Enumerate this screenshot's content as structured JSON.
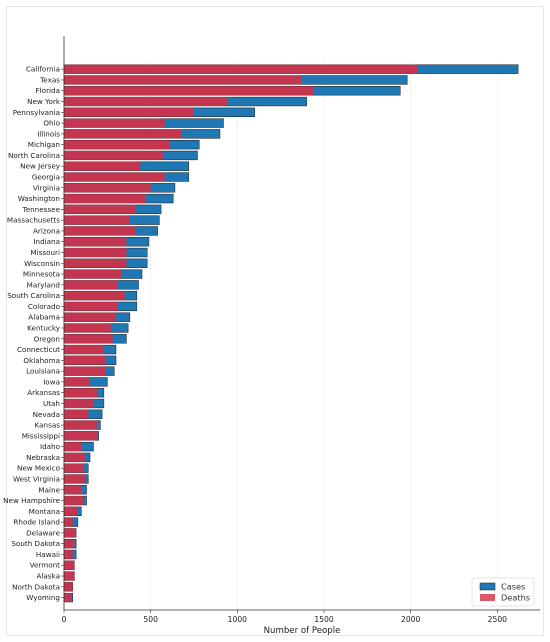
{
  "chart_data": {
    "type": "bar",
    "orientation": "horizontal",
    "stacked": false,
    "xlabel": "Number of People",
    "ylabel": "",
    "xlim": [
      0,
      2700
    ],
    "xticks": [
      0,
      500,
      1000,
      1500,
      2000,
      2500
    ],
    "grid": "vertical-dashed",
    "legend_position": "bottom-right",
    "colors": {
      "cases": "#1f77b4",
      "deaths": "#d62d45"
    },
    "categories": [
      "California",
      "Texas",
      "Florida",
      "New York",
      "Pennsylvania",
      "Ohio",
      "Illinois",
      "Michigan",
      "North Carolina",
      "New Jersey",
      "Georgia",
      "Virginia",
      "Washington",
      "Tennessee",
      "Massachusetts",
      "Arizona",
      "Indiana",
      "Missouri",
      "Wisconsin",
      "Minnesota",
      "Maryland",
      "South Carolina",
      "Colorado",
      "Alabama",
      "Kentucky",
      "Oregon",
      "Connecticut",
      "Oklahoma",
      "Louisiana",
      "Iowa",
      "Arkansas",
      "Utah",
      "Nevada",
      "Kansas",
      "Mississippi",
      "Idaho",
      "Nebraska",
      "New Mexico",
      "West Virginia",
      "Maine",
      "New Hampshire",
      "Montana",
      "Rhode Island",
      "Delaware",
      "South Dakota",
      "Hawaii",
      "Vermont",
      "Alaska",
      "North Dakota",
      "Wyoming"
    ],
    "series": [
      {
        "name": "Cases",
        "values": [
          2620,
          1980,
          1940,
          1400,
          1100,
          920,
          900,
          780,
          770,
          720,
          720,
          640,
          630,
          560,
          550,
          540,
          490,
          480,
          480,
          450,
          430,
          420,
          420,
          380,
          370,
          360,
          300,
          300,
          290,
          250,
          230,
          230,
          220,
          210,
          200,
          170,
          150,
          140,
          140,
          130,
          130,
          100,
          80,
          70,
          70,
          70,
          60,
          60,
          50,
          50
        ]
      },
      {
        "name": "Deaths",
        "values": [
          2040,
          1370,
          1440,
          940,
          750,
          580,
          680,
          610,
          570,
          440,
          580,
          500,
          470,
          410,
          380,
          410,
          360,
          360,
          360,
          330,
          310,
          350,
          310,
          300,
          270,
          280,
          230,
          240,
          240,
          150,
          190,
          170,
          140,
          190,
          190,
          100,
          120,
          110,
          120,
          100,
          110,
          80,
          50,
          70,
          60,
          50,
          60,
          60,
          50,
          40
        ]
      }
    ]
  }
}
